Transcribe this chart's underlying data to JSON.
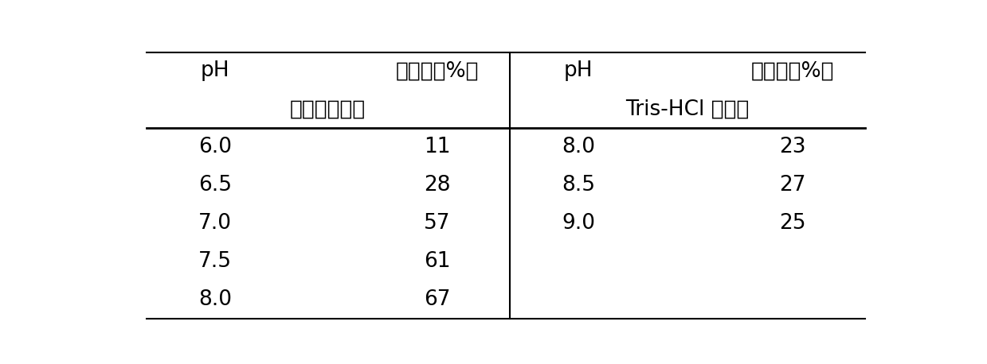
{
  "left_header_row1_col1": "pH",
  "left_header_row1_col2": "转化率（%）",
  "left_header_row2": "磷酸钾缓冲液",
  "right_header_row1_col1": "pH",
  "right_header_row1_col2": "转化率（%）",
  "right_header_row2": "Tris-HCl 缓冲液",
  "left_data": [
    [
      "6.0",
      "11"
    ],
    [
      "6.5",
      "28"
    ],
    [
      "7.0",
      "57"
    ],
    [
      "7.5",
      "61"
    ],
    [
      "8.0",
      "67"
    ]
  ],
  "right_data": [
    [
      "8.0",
      "23"
    ],
    [
      "8.5",
      "27"
    ],
    [
      "9.0",
      "25"
    ]
  ],
  "bg_color": "#ffffff",
  "text_color": "#000000",
  "font_size": 19
}
